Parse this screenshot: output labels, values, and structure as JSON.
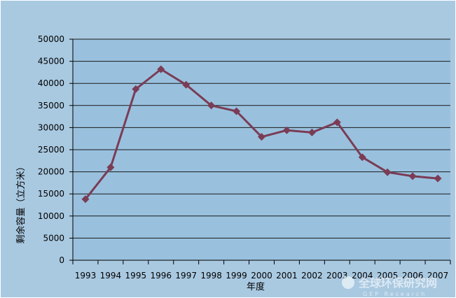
{
  "chart_data": {
    "type": "line",
    "title": "",
    "xlabel": "年度",
    "ylabel": "剩余容量（立方米）",
    "categories": [
      "1993",
      "1994",
      "1995",
      "1996",
      "1997",
      "1998",
      "1999",
      "2000",
      "2001",
      "2002",
      "2003",
      "2004",
      "2005",
      "2006",
      "2007"
    ],
    "series": [
      {
        "values": [
          13800,
          21000,
          38700,
          43200,
          39700,
          35000,
          33700,
          27900,
          29400,
          28900,
          31200,
          23300,
          19900,
          19000,
          18500
        ]
      }
    ],
    "ylim": [
      0,
      50000
    ],
    "yticks": [
      0,
      5000,
      10000,
      15000,
      20000,
      25000,
      30000,
      35000,
      40000,
      45000,
      50000
    ],
    "grid": true,
    "legend": "none",
    "colors": {
      "background": "#a9c9e1",
      "plot_background": "#99c1de",
      "line": "#7b3c55",
      "grid": "#1a1a1a"
    }
  },
  "watermark": {
    "cn": "全球环保研究网",
    "en": "GEP Research"
  }
}
